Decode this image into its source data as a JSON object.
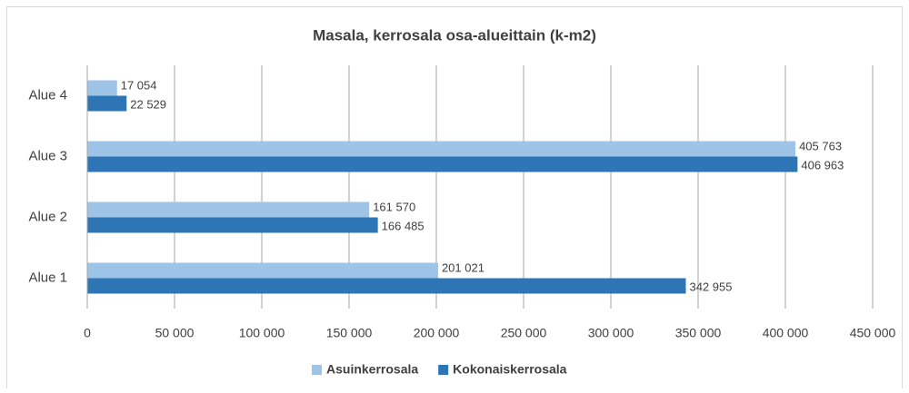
{
  "chart_data": {
    "type": "hbar",
    "title": "Masala, kerrosala osa-alueittain (k-m2)",
    "categories": [
      "Alue 1",
      "Alue 2",
      "Alue 3",
      "Alue 4"
    ],
    "series": [
      {
        "name": "Asuinkerrosala",
        "color": "#9dc3e6",
        "values": [
          201021,
          161570,
          405763,
          17054
        ],
        "value_labels": [
          "201 021",
          "161 570",
          "405 763",
          "17 054"
        ]
      },
      {
        "name": "Kokonaiskerrosala",
        "color": "#2e75b6",
        "values": [
          342955,
          166485,
          406963,
          22529
        ],
        "value_labels": [
          "342 955",
          "166 485",
          "406 963",
          "22 529"
        ]
      }
    ],
    "xlim": [
      0,
      450000
    ],
    "xticks": [
      0,
      {
        "value": 50000,
        "label": "50 000"
      },
      {
        "value": 100000,
        "label": "100 000"
      },
      {
        "value": 150000,
        "label": "150 000"
      },
      {
        "value": 200000,
        "label": "200 000"
      },
      {
        "value": 250000,
        "label": "250 000"
      },
      {
        "value": 300000,
        "label": "300 000"
      },
      {
        "value": 350000,
        "label": "350 000"
      },
      {
        "value": 400000,
        "label": "400 000"
      },
      {
        "value": 450000,
        "label": "450 000"
      }
    ],
    "grid": true,
    "legend": "bottom"
  }
}
